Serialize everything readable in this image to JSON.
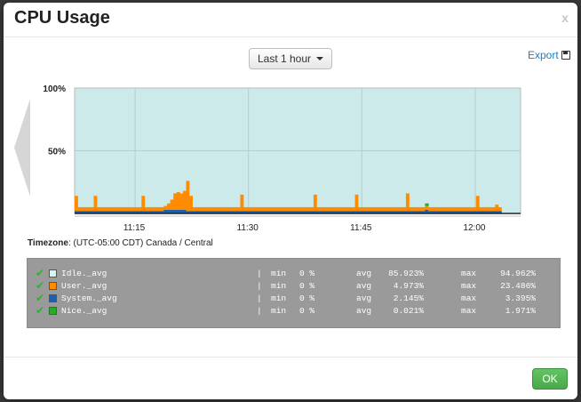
{
  "modal": {
    "title": "CPU Usage",
    "close_label": "x",
    "range_label": "Last 1 hour",
    "export_label": "Export",
    "ok_label": "OK"
  },
  "timezone": {
    "label": "Timezone",
    "value": ": (UTC-05:00 CDT) Canada / Central"
  },
  "legend": [
    {
      "name": "Idle._avg",
      "color": "#d9f3f3",
      "sep": "|",
      "min_label": "min",
      "min": "0 %",
      "avg_label": "avg",
      "avg": "85.923%",
      "max_label": "max",
      "max": "94.962%"
    },
    {
      "name": "User._avg",
      "color": "#ff8c00",
      "sep": "|",
      "min_label": "min",
      "min": "0 %",
      "avg_label": "avg",
      "avg": "4.973%",
      "max_label": "max",
      "max": "23.486%"
    },
    {
      "name": "System._avg",
      "color": "#1f5fa8",
      "sep": "|",
      "min_label": "min",
      "min": "0 %",
      "avg_label": "avg",
      "avg": "2.145%",
      "max_label": "max",
      "max": "3.395%"
    },
    {
      "name": "Nice._avg",
      "color": "#22b022",
      "sep": "|",
      "min_label": "min",
      "min": "0 %",
      "avg_label": "avg",
      "avg": "0.021%",
      "max_label": "max",
      "max": "1.971%"
    }
  ],
  "chart_data": {
    "type": "area",
    "stacked": true,
    "ylim": [
      0,
      100
    ],
    "y_ticks": [
      "100%",
      "50%"
    ],
    "x_ticks": [
      "11:15",
      "11:30",
      "11:45",
      "12:00"
    ],
    "x_tick_minutes": [
      15,
      30,
      45,
      60
    ],
    "x_range_minutes": [
      7,
      66
    ],
    "colors": {
      "idle": "#cdeaea",
      "user": "#ff8c00",
      "system": "#1f5fa8",
      "nice": "#22b022"
    },
    "series": [
      {
        "name": "Nice._avg",
        "values": [
          0,
          0,
          0,
          0,
          0,
          0,
          0,
          0,
          0,
          0,
          0,
          0,
          0,
          0,
          0,
          0,
          0,
          0,
          0,
          0,
          0,
          0,
          0,
          0,
          0,
          0,
          0,
          0,
          0,
          0,
          0,
          0,
          0,
          0,
          0,
          0,
          0,
          0,
          0,
          0,
          0,
          0,
          0,
          0,
          0,
          0,
          0,
          0,
          0,
          0,
          0,
          0,
          0,
          0,
          0,
          0,
          0,
          0,
          0,
          0,
          0,
          0,
          0,
          0,
          0,
          0,
          0,
          0,
          0,
          0,
          0,
          0,
          0,
          0,
          0,
          0,
          0,
          0,
          0,
          0,
          0,
          0,
          0,
          0,
          0,
          0,
          0,
          0,
          0,
          0,
          0,
          0,
          0,
          0,
          0,
          0,
          0,
          0,
          0,
          0,
          0,
          0,
          0,
          0,
          0,
          0,
          0,
          0,
          0,
          0,
          2,
          0,
          0,
          0,
          0,
          0,
          0,
          0,
          0,
          0,
          0,
          0,
          0,
          0,
          0,
          0,
          0,
          0,
          0,
          0,
          0,
          0,
          0,
          0
        ]
      },
      {
        "name": "System._avg",
        "values": [
          2,
          2,
          2,
          2,
          2,
          2,
          2,
          2,
          2,
          2,
          2,
          2,
          2,
          2,
          2,
          2,
          2,
          2,
          2,
          2,
          2,
          2,
          2,
          2,
          2,
          2,
          2,
          2,
          3,
          3,
          3,
          3,
          3,
          3,
          3,
          2,
          2,
          2,
          2,
          2,
          2,
          2,
          2,
          2,
          2,
          2,
          2,
          2,
          2,
          2,
          2,
          2,
          2,
          2,
          2,
          2,
          2,
          2,
          2,
          2,
          2,
          2,
          2,
          2,
          2,
          2,
          2,
          2,
          2,
          2,
          2,
          2,
          2,
          2,
          2,
          2,
          2,
          2,
          2,
          2,
          2,
          2,
          2,
          2,
          2,
          2,
          2,
          2,
          2,
          2,
          2,
          2,
          2,
          2,
          2,
          2,
          2,
          2,
          2,
          2,
          2,
          2,
          2,
          2,
          2,
          2,
          2,
          2,
          2,
          2,
          3,
          2,
          2,
          2,
          2,
          2,
          2,
          2,
          2,
          2,
          2,
          2,
          2,
          2,
          2,
          2,
          2,
          2,
          2,
          2,
          2,
          2,
          2,
          2
        ]
      },
      {
        "name": "User._avg",
        "values": [
          12,
          3,
          3,
          3,
          3,
          3,
          12,
          3,
          3,
          3,
          3,
          3,
          3,
          3,
          3,
          3,
          3,
          3,
          3,
          3,
          3,
          12,
          3,
          3,
          3,
          3,
          3,
          3,
          3,
          5,
          8,
          13,
          14,
          13,
          15,
          24,
          12,
          3,
          3,
          3,
          3,
          3,
          3,
          3,
          3,
          3,
          3,
          3,
          3,
          3,
          3,
          3,
          13,
          3,
          3,
          3,
          3,
          3,
          3,
          3,
          3,
          3,
          3,
          3,
          3,
          3,
          3,
          3,
          3,
          3,
          3,
          3,
          3,
          3,
          3,
          13,
          3,
          3,
          3,
          3,
          3,
          3,
          3,
          3,
          3,
          3,
          3,
          3,
          13,
          3,
          3,
          3,
          3,
          3,
          3,
          3,
          3,
          3,
          3,
          3,
          3,
          3,
          3,
          3,
          14,
          3,
          3,
          3,
          3,
          3,
          3,
          3,
          3,
          3,
          3,
          3,
          3,
          3,
          3,
          3,
          3,
          3,
          3,
          3,
          3,
          3,
          12,
          3,
          3,
          3,
          3,
          3,
          5,
          3,
          6,
          10,
          24,
          15,
          15,
          15
        ]
      },
      {
        "name": "Idle._avg",
        "values": "remainder to 100%"
      }
    ],
    "grid": true
  }
}
